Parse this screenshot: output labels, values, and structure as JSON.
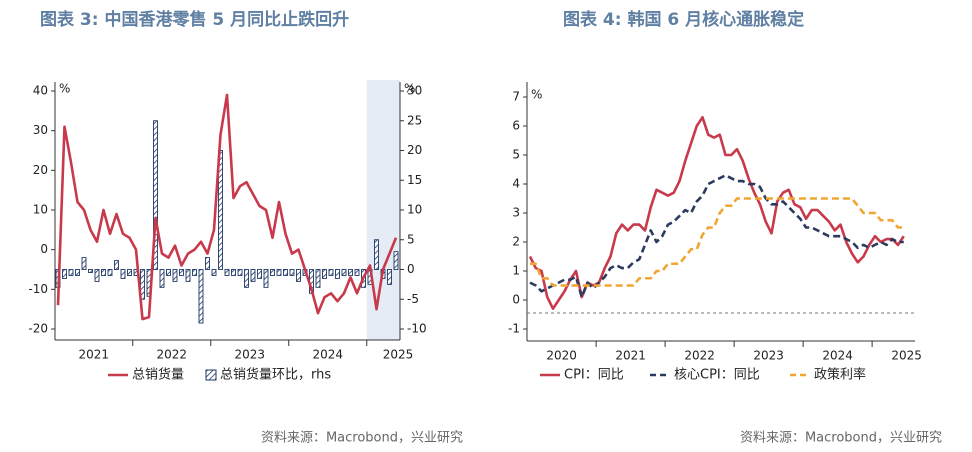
{
  "chart_data": [
    {
      "type": "combo",
      "title": "图表 3:  中国香港零售 5 月同比止跌回升",
      "ylabel": "%",
      "y2label": "%",
      "ylim": [
        -20,
        40
      ],
      "yticks": [
        -20,
        -10,
        0,
        10,
        20,
        30,
        40
      ],
      "y2lim": [
        -10,
        30
      ],
      "y2ticks": [
        -10,
        -5,
        0,
        5,
        10,
        15,
        20,
        25,
        30
      ],
      "year_labels": [
        "2021",
        "2022",
        "2023",
        "2024",
        "2025"
      ],
      "series": [
        {
          "name": "总销货量",
          "type": "line",
          "color": "#c8394b",
          "values": [
            -14,
            31,
            22,
            12,
            10,
            5,
            2,
            10,
            4,
            9,
            4,
            3,
            0,
            -17.5,
            -17,
            8,
            -1,
            -2,
            1,
            -4,
            -1,
            0,
            2,
            -1,
            5,
            29,
            39,
            13,
            16,
            17,
            14,
            11,
            10,
            3,
            12,
            4,
            -1,
            0,
            -5,
            -10,
            -16,
            -12,
            -11,
            -13,
            -11,
            -7,
            -11,
            -7,
            -4,
            -15,
            -5,
            -1,
            3
          ]
        },
        {
          "name": "总销货量环比，rhs",
          "type": "bar",
          "axis": "y2",
          "color": "#1f3864",
          "values": [
            -3,
            -1.5,
            -1,
            -1,
            2,
            -0.5,
            -2,
            -1,
            -1,
            1.5,
            -1.5,
            -1,
            -1,
            -5,
            -4.5,
            25,
            -3,
            -1,
            -2,
            -1,
            -2,
            -1,
            -9,
            2,
            -1,
            20,
            -1,
            -1,
            -1,
            -3,
            -2,
            -1.5,
            -3,
            -1,
            -1,
            -1,
            -1,
            -2,
            -1,
            -4,
            -3,
            -1.5,
            -1,
            -1.5,
            -1,
            -1,
            -1,
            -3,
            -2.5,
            5,
            -1.5,
            -2.5,
            3
          ]
        }
      ],
      "source": "资料来源：Macrobond，兴业研究"
    },
    {
      "type": "line",
      "title": "图表 4:  韩国 6 月核心通胀稳定",
      "ylabel": "%",
      "ylim": [
        -1,
        7
      ],
      "yticks": [
        -1,
        0,
        1,
        2,
        3,
        4,
        5,
        6,
        7
      ],
      "year_labels": [
        "2020",
        "2021",
        "2022",
        "2023",
        "2024",
        "2025"
      ],
      "reference_line": -0.45,
      "series": [
        {
          "name": "CPI：同比",
          "color": "#c8394b",
          "dashed": false,
          "values": [
            1.5,
            1.1,
            1.0,
            0.1,
            -0.3,
            0.0,
            0.3,
            0.7,
            1.0,
            0.1,
            0.6,
            0.5,
            0.6,
            1.1,
            1.5,
            2.3,
            2.6,
            2.4,
            2.6,
            2.6,
            2.4,
            3.2,
            3.8,
            3.7,
            3.6,
            3.7,
            4.1,
            4.8,
            5.4,
            6.0,
            6.3,
            5.7,
            5.6,
            5.7,
            5.0,
            5.0,
            5.2,
            4.8,
            4.2,
            3.7,
            3.3,
            2.7,
            2.3,
            3.4,
            3.7,
            3.8,
            3.3,
            3.2,
            2.8,
            3.1,
            3.1,
            2.9,
            2.7,
            2.4,
            2.6,
            2.0,
            1.6,
            1.3,
            1.5,
            1.9,
            2.2,
            2.0,
            2.1,
            2.1,
            1.9,
            2.2
          ]
        },
        {
          "name": "核心CPI：同比",
          "color": "#2b3a5e",
          "dashed": true,
          "values": [
            0.6,
            0.5,
            0.3,
            0.4,
            0.5,
            0.6,
            0.7,
            0.7,
            0.8,
            0.1,
            0.6,
            0.4,
            0.6,
            0.8,
            1.1,
            1.2,
            1.1,
            1.1,
            1.3,
            1.4,
            1.9,
            2.4,
            2.0,
            2.2,
            2.6,
            2.7,
            2.9,
            3.1,
            3.0,
            3.4,
            3.6,
            4.0,
            4.1,
            4.2,
            4.3,
            4.2,
            4.1,
            4.1,
            4.0,
            4.0,
            3.9,
            3.5,
            3.3,
            3.3,
            3.4,
            3.2,
            3.0,
            2.8,
            2.5,
            2.5,
            2.4,
            2.3,
            2.2,
            2.2,
            2.2,
            2.1,
            2.0,
            1.8,
            1.9,
            1.8,
            1.9,
            2.0,
            1.9,
            2.1,
            2.0,
            2.0
          ]
        },
        {
          "name": "政策利率",
          "color": "#f0a630",
          "dashed": true,
          "values": [
            1.25,
            1.25,
            0.75,
            0.75,
            0.5,
            0.5,
            0.5,
            0.5,
            0.5,
            0.5,
            0.5,
            0.5,
            0.5,
            0.5,
            0.5,
            0.5,
            0.5,
            0.5,
            0.5,
            0.75,
            0.75,
            0.75,
            1.0,
            1.0,
            1.25,
            1.25,
            1.25,
            1.5,
            1.75,
            1.75,
            2.25,
            2.5,
            2.5,
            3.0,
            3.25,
            3.25,
            3.5,
            3.5,
            3.5,
            3.5,
            3.5,
            3.5,
            3.5,
            3.5,
            3.5,
            3.5,
            3.5,
            3.5,
            3.5,
            3.5,
            3.5,
            3.5,
            3.5,
            3.5,
            3.5,
            3.5,
            3.5,
            3.25,
            3.0,
            3.0,
            3.0,
            2.75,
            2.75,
            2.75,
            2.5,
            2.5
          ]
        }
      ],
      "source": "资料来源：Macrobond，兴业研究"
    }
  ]
}
